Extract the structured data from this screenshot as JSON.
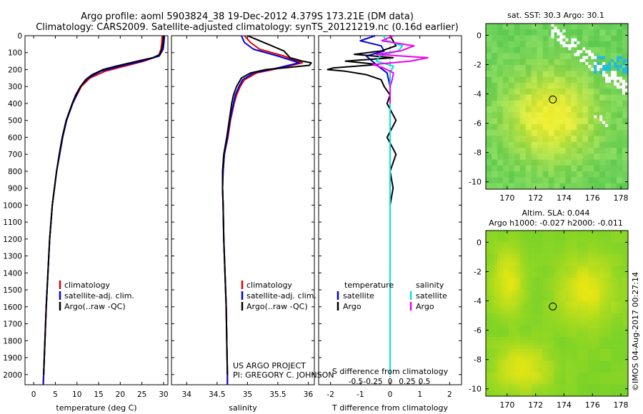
{
  "header": {
    "title_line1": "Argo profile: aoml 5903824_38 19-Dec-2012 4.379S 173.21E (DM data)",
    "title_line2": "Climatology: CARS2009. Satellite-adjusted climatology: synTS_20121219.nc (0.16d earlier)"
  },
  "credits": {
    "project": "US ARGO PROJECT",
    "pi": "PI: GREGORY C. JOHNSON",
    "watermark": "©IMOS 04-Aug-2017 00:27:14"
  },
  "colors": {
    "climatology": "#e00000",
    "satellite": "#0000dd",
    "argo": "#000000",
    "sat_t": "#00e0e0",
    "argo_s": "#ee00ee"
  },
  "chart_data": [
    {
      "type": "line",
      "id": "temperature",
      "xlabel": "temperature (deg C)",
      "ylabel": "",
      "xlim": [
        -2,
        31
      ],
      "ylim": [
        2060,
        0
      ],
      "xticks": [
        0,
        5,
        10,
        15,
        20,
        25,
        30
      ],
      "xtick_labels": [
        "0",
        "5",
        "10",
        "15",
        "20",
        "25",
        "30"
      ],
      "yticks": [
        0,
        100,
        200,
        300,
        400,
        500,
        600,
        700,
        800,
        900,
        1000,
        1100,
        1200,
        1300,
        1400,
        1500,
        1600,
        1700,
        1800,
        1900,
        2000
      ],
      "ytick_labels": [
        "0",
        "100",
        "200",
        "300",
        "400",
        "500",
        "600",
        "700",
        "800",
        "900",
        "1000",
        "1100",
        "1200",
        "1300",
        "1400",
        "1500",
        "1600",
        "1700",
        "1800",
        "1900",
        "2000"
      ],
      "legend": [
        "climatology",
        "satellite-adj. clim.",
        "Argo(..raw -QC)"
      ],
      "series": [
        {
          "name": "climatology",
          "depth": [
            0,
            40,
            80,
            120,
            150,
            180,
            210,
            250,
            300,
            350,
            400,
            500,
            600,
            700,
            800,
            900,
            1000,
            1200,
            1400,
            1600,
            1800,
            2000,
            2060
          ],
          "values": [
            29.7,
            29.6,
            29.4,
            28.8,
            25.5,
            21.0,
            16.5,
            13.0,
            11.0,
            10.0,
            9.0,
            7.6,
            6.7,
            6.0,
            5.3,
            4.8,
            4.3,
            3.7,
            3.3,
            2.9,
            2.6,
            2.3,
            2.2
          ]
        },
        {
          "name": "satellite-adj. clim.",
          "depth": [
            0,
            40,
            80,
            120,
            150,
            180,
            210,
            250,
            300,
            350,
            400,
            500,
            600,
            700,
            800,
            900,
            1000,
            1200,
            1400,
            1600,
            1800,
            2000,
            2060
          ],
          "values": [
            30.2,
            30.1,
            29.9,
            29.0,
            25.0,
            20.0,
            15.5,
            12.6,
            10.8,
            9.9,
            9.0,
            7.6,
            6.7,
            6.0,
            5.3,
            4.8,
            4.3,
            3.7,
            3.3,
            2.9,
            2.6,
            2.3,
            2.2
          ]
        },
        {
          "name": "Argo(..raw -QC)",
          "depth": [
            0,
            40,
            80,
            110,
            130,
            150,
            180,
            200,
            230,
            260,
            300,
            350,
            400,
            500,
            600,
            700,
            800,
            900,
            1000,
            1200,
            1400,
            1600,
            1800,
            2000
          ],
          "values": [
            30.0,
            29.9,
            29.6,
            29.2,
            27.5,
            24.0,
            19.0,
            16.0,
            13.5,
            12.0,
            10.8,
            9.7,
            8.9,
            7.5,
            6.6,
            5.9,
            5.3,
            4.8,
            4.3,
            3.7,
            3.3,
            2.9,
            2.6,
            2.3
          ]
        }
      ]
    },
    {
      "type": "line",
      "id": "salinity",
      "xlabel": "salinity",
      "xlim": [
        33.75,
        36.1
      ],
      "ylim": [
        2060,
        0
      ],
      "xticks": [
        34,
        34.5,
        35,
        35.5,
        36
      ],
      "xtick_labels": [
        "34",
        "34.5",
        "35",
        "35.5",
        "36"
      ],
      "legend": [
        "climatology",
        "satellite-adj. clim.",
        "Argo(..raw -QC)"
      ],
      "series": [
        {
          "name": "climatology",
          "depth": [
            0,
            40,
            80,
            120,
            160,
            190,
            220,
            260,
            300,
            350,
            400,
            500,
            600,
            700,
            800,
            900,
            1000,
            1200,
            1400,
            1600,
            1800,
            2000,
            2060
          ],
          "values": [
            34.95,
            35.05,
            35.2,
            35.6,
            35.9,
            35.55,
            35.15,
            34.95,
            34.88,
            34.82,
            34.78,
            34.72,
            34.68,
            34.62,
            34.6,
            34.59,
            34.6,
            34.61,
            34.63,
            34.65,
            34.66,
            34.67,
            34.67
          ]
        },
        {
          "name": "satellite-adj. clim.",
          "depth": [
            0,
            40,
            80,
            120,
            160,
            190,
            220,
            260,
            300,
            350,
            400,
            500,
            600,
            700,
            800,
            900,
            1000,
            1200,
            1400,
            1600,
            1800,
            2000,
            2060
          ],
          "values": [
            34.9,
            34.95,
            35.1,
            35.5,
            35.85,
            35.5,
            35.1,
            34.92,
            34.86,
            34.8,
            34.77,
            34.71,
            34.67,
            34.62,
            34.6,
            34.59,
            34.6,
            34.61,
            34.63,
            34.65,
            34.66,
            34.67,
            34.67
          ]
        },
        {
          "name": "Argo(..raw -QC)",
          "depth": [
            0,
            30,
            60,
            90,
            110,
            130,
            150,
            160,
            175,
            190,
            200,
            220,
            250,
            300,
            350,
            400,
            500,
            600,
            700,
            800,
            900,
            1000,
            1200,
            1400,
            1600,
            1800,
            2000
          ],
          "values": [
            35.0,
            35.2,
            35.4,
            35.6,
            35.65,
            35.7,
            35.9,
            36.05,
            36.02,
            35.6,
            35.3,
            35.05,
            34.9,
            34.82,
            34.77,
            34.74,
            34.7,
            34.66,
            34.61,
            34.59,
            34.59,
            34.6,
            34.61,
            34.63,
            34.65,
            34.66,
            34.67
          ]
        }
      ]
    },
    {
      "type": "line",
      "id": "difference",
      "xlabel": "T difference from climatology",
      "xlabel_top": "S difference from climatology",
      "xlim": [
        -2.4,
        2.4
      ],
      "ylim": [
        2060,
        0
      ],
      "xticks": [
        -2,
        -1,
        0,
        1,
        2
      ],
      "xtick_labels": [
        "-2",
        "-1",
        "0",
        "1",
        "2"
      ],
      "s_xticks": [
        -0.5,
        -0.25,
        0,
        0.25,
        0.5
      ],
      "s_xtick_labels": [
        "-0.5",
        "-0.25",
        "0",
        "0.25",
        "0.5"
      ],
      "legend_titles": [
        "temperature",
        "salinity"
      ],
      "legend": [
        "satellite",
        "Argo",
        "satellite",
        "Argo"
      ],
      "series": [
        {
          "name": "T satellite",
          "depth": [
            0,
            30,
            60,
            90,
            120,
            150,
            180,
            220,
            300,
            500,
            800,
            1200,
            1600,
            2000
          ],
          "values": [
            -0.5,
            -1.0,
            -0.3,
            -0.2,
            -0.8,
            -0.6,
            -0.4,
            -0.1,
            0,
            0,
            0,
            0,
            0,
            0
          ]
        },
        {
          "name": "T Argo",
          "depth": [
            0,
            60,
            90,
            110,
            130,
            150,
            170,
            190,
            200,
            210,
            230,
            260,
            300,
            350,
            400,
            500,
            600,
            700,
            800,
            900,
            1000,
            1200,
            1400,
            1600,
            1800,
            2000
          ],
          "values": [
            0,
            0.2,
            -0.3,
            -1.2,
            0.1,
            -1.5,
            -0.4,
            -1.9,
            -2.1,
            -1.5,
            -0.8,
            -0.3,
            -0.2,
            0,
            -0.1,
            0.2,
            -0.1,
            0.2,
            0,
            0.1,
            0,
            0,
            0,
            0,
            0,
            0
          ]
        },
        {
          "name": "S satellite",
          "depth": [
            0,
            30,
            60,
            90,
            120,
            150,
            180,
            220,
            300,
            500,
            800,
            1200,
            1600,
            2000
          ],
          "values": [
            -0.1,
            -0.05,
            0.18,
            0.12,
            -0.15,
            -0.2,
            0.05,
            0,
            0,
            0,
            0,
            0,
            0,
            0
          ]
        },
        {
          "name": "S Argo",
          "depth": [
            0,
            30,
            60,
            90,
            110,
            130,
            150,
            170,
            190,
            220,
            260,
            300,
            400
          ],
          "values": [
            0.05,
            -0.12,
            0.35,
            0.15,
            -0.2,
            0.55,
            0.3,
            -0.25,
            -0.1,
            0.05,
            0.03,
            0,
            0
          ]
        }
      ]
    },
    {
      "type": "heatmap",
      "id": "sst-map",
      "title": "sat. SST: 30.3  Argo: 30.1",
      "xlim": [
        168.5,
        178.5
      ],
      "ylim": [
        -10.5,
        0.8
      ],
      "xticks": [
        170,
        172,
        174,
        176,
        178
      ],
      "xtick_labels": [
        "170",
        "172",
        "174",
        "176",
        "178"
      ],
      "yticks": [
        0,
        -2,
        -4,
        -6,
        -8,
        -10
      ],
      "ytick_labels": [
        "0",
        "-2",
        "-4",
        "-6",
        "-8",
        "-10"
      ],
      "marker": {
        "lon": 173.21,
        "lat": -4.379
      }
    },
    {
      "type": "heatmap",
      "id": "sla-map",
      "title_line1": "Altim. SLA: 0.044",
      "title_line2": "Argo h1000: -0.027 h2000: -0.011",
      "xlim": [
        168.5,
        178.5
      ],
      "ylim": [
        -10.5,
        0.8
      ],
      "xticks": [
        170,
        172,
        174,
        176,
        178
      ],
      "xtick_labels": [
        "170",
        "172",
        "174",
        "176",
        "178"
      ],
      "yticks": [
        0,
        -2,
        -4,
        -6,
        -8,
        -10
      ],
      "ytick_labels": [
        "0",
        "-2",
        "-4",
        "-6",
        "-8",
        "-10"
      ],
      "marker": {
        "lon": 173.21,
        "lat": -4.379
      }
    }
  ]
}
